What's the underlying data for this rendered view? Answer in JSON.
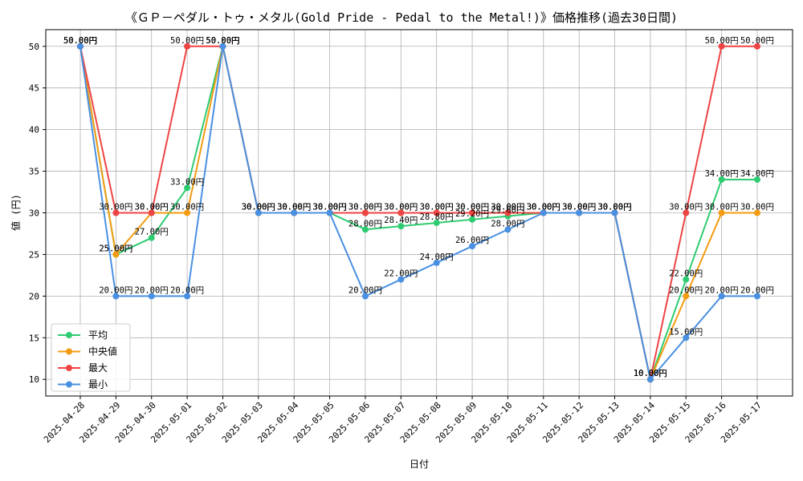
{
  "chart_data": {
    "type": "line",
    "title": "《ＧＰ－ペダル・トゥ・メタル(Gold Pride - Pedal to the Metal!)》価格推移(過去30日間)",
    "xlabel": "日付",
    "ylabel": "値 (円)",
    "ylim": [
      8,
      52
    ],
    "yticks": [
      10,
      15,
      20,
      25,
      30,
      35,
      40,
      45,
      50
    ],
    "grid": true,
    "legend_position": "lower-left",
    "label_suffix": "円",
    "categories": [
      "2025-04-28",
      "2025-04-29",
      "2025-04-30",
      "2025-05-01",
      "2025-05-02",
      "2025-05-03",
      "2025-05-04",
      "2025-05-05",
      "2025-05-06",
      "2025-05-07",
      "2025-05-08",
      "2025-05-09",
      "2025-05-10",
      "2025-05-11",
      "2025-05-12",
      "2025-05-13",
      "2025-05-14",
      "2025-05-15",
      "2025-05-16",
      "2025-05-17"
    ],
    "series": [
      {
        "name": "平均",
        "color": "#2ecc71",
        "values": [
          50,
          25,
          27,
          33,
          50,
          30,
          30,
          30,
          28,
          28.4,
          28.8,
          29.2,
          29.6,
          30,
          30,
          30,
          10,
          22,
          34,
          34
        ]
      },
      {
        "name": "中央値",
        "color": "#f39c12",
        "values": [
          50,
          25,
          30,
          30,
          50,
          30,
          30,
          30,
          30,
          30,
          30,
          30,
          30,
          30,
          30,
          30,
          10,
          20,
          30,
          30
        ]
      },
      {
        "name": "最大",
        "color": "#ef4444",
        "values": [
          50,
          30,
          30,
          50,
          50,
          30,
          30,
          30,
          30,
          30,
          30,
          30,
          30,
          30,
          30,
          30,
          10,
          30,
          50,
          50
        ]
      },
      {
        "name": "最小",
        "color": "#4a90e2",
        "values": [
          50,
          20,
          20,
          20,
          50,
          30,
          30,
          30,
          20,
          22,
          24,
          26,
          28,
          30,
          30,
          30,
          10,
          15,
          20,
          20
        ]
      }
    ]
  }
}
